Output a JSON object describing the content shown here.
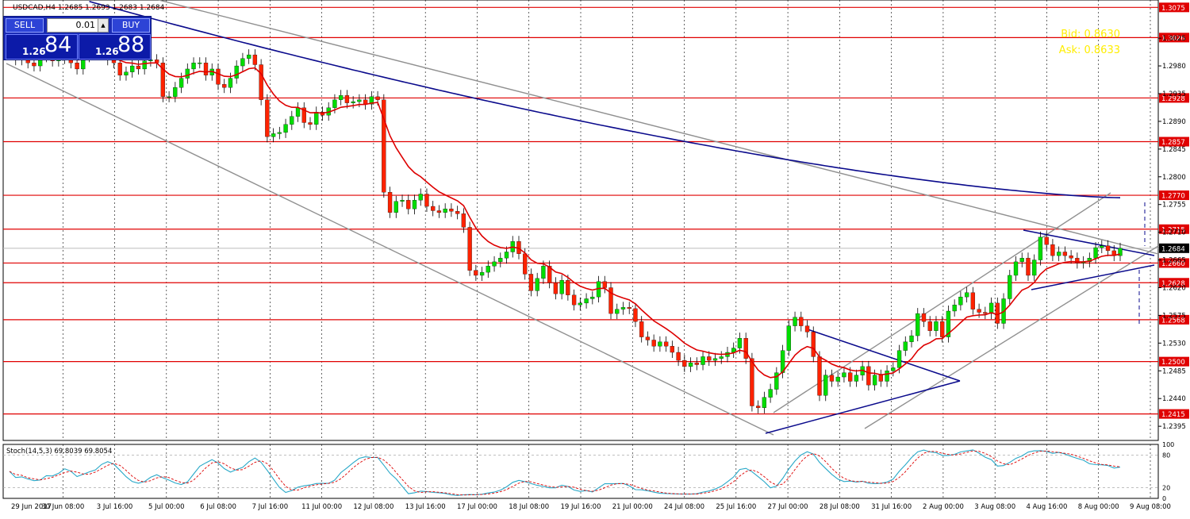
{
  "header": {
    "symbol_ohlc": "USDCAD,H4  1.2685 1.2693 1.2683 1.2684"
  },
  "trade_panel": {
    "sell_label": "SELL",
    "buy_label": "BUY",
    "lot_value": "0.01",
    "sell_small": "1.26",
    "sell_big": "84",
    "buy_small": "1.26",
    "buy_big": "88"
  },
  "info_box": {
    "bid": "Bid: 0.8630",
    "ask": "Ask: 0.8633"
  },
  "colors": {
    "bull": "#00dd00",
    "bear": "#ff2200",
    "level": "#e00000",
    "ma_fast": "#dd0000",
    "ma_slow": "#0a0a8c",
    "channel": "#909090",
    "stoch_main": "#28a8c8",
    "stoch_signal": "#dd0000"
  },
  "chart_data": {
    "type": "candlestick",
    "symbol": "USDCAD",
    "timeframe": "H4",
    "ylim": [
      1.2372,
      1.3087
    ],
    "y_ticks": [
      1.2395,
      1.244,
      1.2485,
      1.253,
      1.2575,
      1.262,
      1.2665,
      1.271,
      1.2755,
      1.28,
      1.2845,
      1.289,
      1.2935,
      1.298,
      1.3025
    ],
    "y_tick_labels": [
      "1.2395",
      "1.2440",
      "1.2485",
      "1.2530",
      "1.2575",
      "1.2620",
      "1.2665",
      "1.2710",
      "1.2755",
      "1.2800",
      "1.2845",
      "1.2890",
      "1.2935",
      "1.2980",
      "1.3025"
    ],
    "x_labels": [
      "29 Jun 2017",
      "30 Jun 08:00",
      "3 Jul 16:00",
      "5 Jul 00:00",
      "6 Jul 08:00",
      "7 Jul 16:00",
      "11 Jul 00:00",
      "12 Jul 08:00",
      "13 Jul 16:00",
      "17 Jul 00:00",
      "18 Jul 08:00",
      "19 Jul 16:00",
      "21 Jul 00:00",
      "24 Jul 08:00",
      "25 Jul 16:00",
      "27 Jul 00:00",
      "28 Jul 08:00",
      "31 Jul 16:00",
      "2 Aug 00:00",
      "3 Aug 08:00",
      "4 Aug 16:00",
      "8 Aug 00:00",
      "9 Aug 08:00"
    ],
    "horizontal_levels": [
      {
        "value": 1.3075,
        "label": "1.3075"
      },
      {
        "value": 1.3026,
        "label": "1.3026"
      },
      {
        "value": 1.2928,
        "label": "1.2928"
      },
      {
        "value": 1.2857,
        "label": "1.2857"
      },
      {
        "value": 1.277,
        "label": "1.2770"
      },
      {
        "value": 1.2715,
        "label": "1.2715"
      },
      {
        "value": 1.266,
        "label": "1.2660"
      },
      {
        "value": 1.2628,
        "label": "1.2628"
      },
      {
        "value": 1.2568,
        "label": "1.2568"
      },
      {
        "value": 1.25,
        "label": "1.2500"
      },
      {
        "value": 1.2415,
        "label": "1.2415"
      }
    ],
    "current_price": {
      "value": 1.2684,
      "label": "1.2684"
    },
    "closes": [
      1.3005,
      1.299,
      1.2995,
      1.2985,
      1.298,
      1.2995,
      1.3,
      1.2988,
      1.2992,
      1.2998,
      1.2985,
      1.2975,
      1.2995,
      1.3,
      1.3005,
      1.301,
      1.299,
      1.2985,
      1.2965,
      1.297,
      1.298,
      1.2975,
      1.2988,
      1.299,
      1.2985,
      1.293,
      1.293,
      1.2945,
      1.296,
      1.2975,
      1.2985,
      1.2985,
      1.2965,
      1.2975,
      1.295,
      1.2945,
      1.296,
      1.298,
      1.2992,
      1.2998,
      1.2982,
      1.2925,
      1.2865,
      1.287,
      1.2872,
      1.2885,
      1.2898,
      1.2912,
      1.2888,
      1.2885,
      1.2905,
      1.29,
      1.2912,
      1.2925,
      1.2932,
      1.292,
      1.2922,
      1.2925,
      1.2918,
      1.293,
      1.2925,
      1.2775,
      1.2742,
      1.276,
      1.2762,
      1.2748,
      1.2762,
      1.2772,
      1.2752,
      1.2745,
      1.2742,
      1.2748,
      1.2744,
      1.274,
      1.2718,
      1.2648,
      1.264,
      1.2645,
      1.2655,
      1.2662,
      1.2668,
      1.2678,
      1.2695,
      1.2675,
      1.2642,
      1.2615,
      1.2635,
      1.2655,
      1.2628,
      1.261,
      1.2632,
      1.2608,
      1.2592,
      1.2595,
      1.2602,
      1.2605,
      1.263,
      1.262,
      1.2578,
      1.2585,
      1.2588,
      1.2586,
      1.2565,
      1.254,
      1.2535,
      1.2525,
      1.2532,
      1.2525,
      1.2515,
      1.2502,
      1.2492,
      1.2498,
      1.2495,
      1.2508,
      1.2502,
      1.2505,
      1.2508,
      1.2515,
      1.2522,
      1.2538,
      1.2505,
      1.2428,
      1.2425,
      1.2442,
      1.2455,
      1.2482,
      1.2518,
      1.2558,
      1.2572,
      1.2558,
      1.2548,
      1.2508,
      1.2445,
      1.2478,
      1.2468,
      1.2475,
      1.2482,
      1.2468,
      1.2478,
      1.2492,
      1.2462,
      1.2478,
      1.2468,
      1.2485,
      1.249,
      1.2518,
      1.2532,
      1.2542,
      1.2578,
      1.2565,
      1.255,
      1.2565,
      1.254,
      1.2582,
      1.2592,
      1.2605,
      1.2612,
      1.2585,
      1.258,
      1.2578,
      1.2595,
      1.2562,
      1.2602,
      1.264,
      1.2662,
      1.2668,
      1.264,
      1.2665,
      1.2702,
      1.269,
      1.2672,
      1.2678,
      1.2672,
      1.2668,
      1.266,
      1.2662,
      1.2668,
      1.2685,
      1.2688,
      1.268,
      1.2672,
      1.2684
    ],
    "ma_fast_last": 1.2677,
    "ma_slow_last": 1.2768,
    "stochastic": {
      "label": "Stoch(14,5,3) 69.8039 69.8054",
      "main_last": 69.8039,
      "signal_last": 69.8054,
      "ylim": [
        0,
        100
      ],
      "levels": [
        20,
        80
      ],
      "y_tick_labels": [
        "100",
        "80",
        "20",
        "0"
      ]
    }
  }
}
